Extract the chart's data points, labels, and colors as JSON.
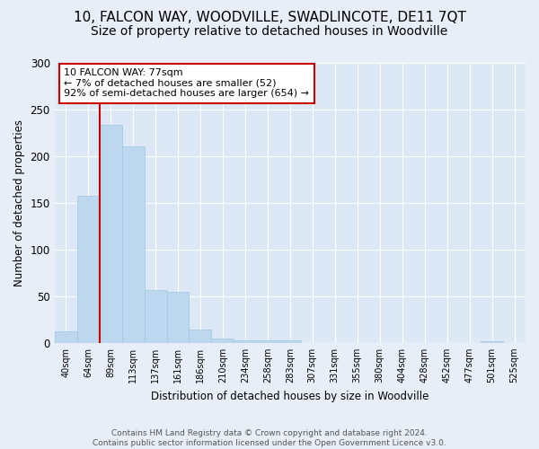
{
  "title1": "10, FALCON WAY, WOODVILLE, SWADLINCOTE, DE11 7QT",
  "title2": "Size of property relative to detached houses in Woodville",
  "xlabel": "Distribution of detached houses by size in Woodville",
  "ylabel": "Number of detached properties",
  "categories": [
    "40sqm",
    "64sqm",
    "89sqm",
    "113sqm",
    "137sqm",
    "161sqm",
    "186sqm",
    "210sqm",
    "234sqm",
    "258sqm",
    "283sqm",
    "307sqm",
    "331sqm",
    "355sqm",
    "380sqm",
    "404sqm",
    "428sqm",
    "452sqm",
    "477sqm",
    "501sqm",
    "525sqm"
  ],
  "values": [
    12,
    158,
    234,
    211,
    57,
    55,
    14,
    5,
    3,
    3,
    3,
    0,
    0,
    0,
    0,
    0,
    0,
    0,
    0,
    2,
    0
  ],
  "bar_color": "#bdd7ee",
  "bar_edge_color": "#9ec6e0",
  "vline_x": 1.5,
  "vline_color": "#cc0000",
  "annotation_text": "10 FALCON WAY: 77sqm\n← 7% of detached houses are smaller (52)\n92% of semi-detached houses are larger (654) →",
  "annotation_box_color": "#ffffff",
  "annotation_box_edge": "#cc0000",
  "ylim": [
    0,
    300
  ],
  "yticks": [
    0,
    50,
    100,
    150,
    200,
    250,
    300
  ],
  "bg_color": "#dce8f5",
  "fig_bg_color": "#e8eef8",
  "footer": "Contains HM Land Registry data © Crown copyright and database right 2024.\nContains public sector information licensed under the Open Government Licence v3.0.",
  "title1_fontsize": 11,
  "title2_fontsize": 10,
  "footer_fontsize": 6.5
}
